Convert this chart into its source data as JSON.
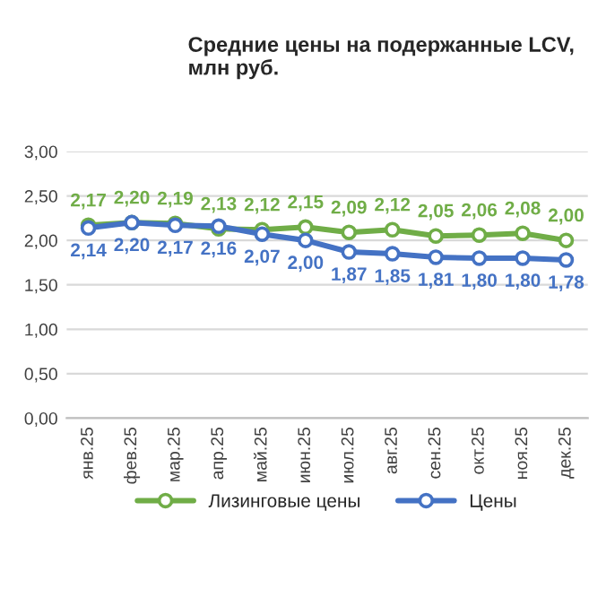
{
  "chart_data": {
    "type": "line",
    "title": "Средние цены на подержанные LCV,\nмлн руб.",
    "categories": [
      "янв.25",
      "фев.25",
      "мар.25",
      "апр.25",
      "май.25",
      "июн.25",
      "июл.25",
      "авг.25",
      "сен.25",
      "окт.25",
      "ноя.25",
      "дек.25"
    ],
    "series": [
      {
        "name": "Лизинговые цены",
        "color": "#70ad47",
        "values": [
          2.17,
          2.2,
          2.19,
          2.13,
          2.12,
          2.15,
          2.09,
          2.12,
          2.05,
          2.06,
          2.08,
          2.0
        ],
        "value_labels": [
          "2,17",
          "2,20",
          "2,19",
          "2,13",
          "2,12",
          "2,15",
          "2,09",
          "2,12",
          "2,05",
          "2,06",
          "2,08",
          "2,00"
        ]
      },
      {
        "name": "Цены",
        "color": "#4472c4",
        "values": [
          2.14,
          2.2,
          2.17,
          2.16,
          2.07,
          2.0,
          1.87,
          1.85,
          1.81,
          1.8,
          1.8,
          1.78
        ],
        "value_labels": [
          "2,14",
          "2,20",
          "2,17",
          "2,16",
          "2,07",
          "2,00",
          "1,87",
          "1,85",
          "1,81",
          "1,80",
          "1,80",
          "1,78"
        ]
      }
    ],
    "ylim": [
      0,
      3
    ],
    "yticks": [
      {
        "value": 0,
        "label": "0,00"
      },
      {
        "value": 0.5,
        "label": "0,50"
      },
      {
        "value": 1,
        "label": "1,00"
      },
      {
        "value": 1.5,
        "label": "1,50"
      },
      {
        "value": 2,
        "label": "2,00"
      },
      {
        "value": 2.5,
        "label": "2,50"
      },
      {
        "value": 3,
        "label": "3,00"
      }
    ],
    "grid": "y",
    "legend": "bottom",
    "marker": "circle",
    "line_style": "solid"
  }
}
